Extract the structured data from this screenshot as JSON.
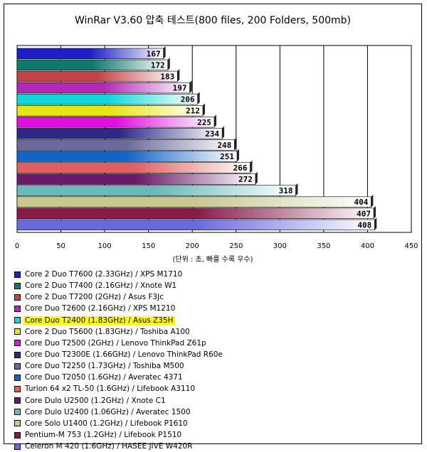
{
  "chart_data": {
    "type": "bar",
    "orientation": "horizontal",
    "title": "WinRar V3.60 압축 테스트(800 files, 200 Folders, 500mb)",
    "unit_note": "(단위 : 초, 빠를 수록 우수)",
    "xlim": [
      0,
      450
    ],
    "xticks": [
      "0",
      "50",
      "100",
      "150",
      "200",
      "250",
      "300",
      "350",
      "400",
      "450"
    ],
    "grid": true,
    "legend_position": "bottom",
    "highlighted_series": 4,
    "series": [
      {
        "name": "Core 2 Duo T7600 (2.33GHz) / XPS M1710",
        "value": 167,
        "color": "#1e1ec8"
      },
      {
        "name": "Core 2 Duo T7400 (2.16GHz) / Xnote W1",
        "value": 172,
        "color": "#0e7a6e"
      },
      {
        "name": "Core 2 Duo T7200 (2GHz) / Asus F3Jc",
        "value": 183,
        "color": "#c24444"
      },
      {
        "name": "Core Duo T2600 (2.16GHz) / XPS M1210",
        "value": 197,
        "color": "#b428b4"
      },
      {
        "name": "Core Duo T2400 (1.83GHz) / Asus Z35H",
        "value": 206,
        "color": "#10d8d8"
      },
      {
        "name": "Core 2 Duo T5600 (1.83GHz) / Toshiba A100",
        "value": 212,
        "color": "#e6e610"
      },
      {
        "name": "Core Duo T2500 (2GHz) / Lenovo ThinkPad Z61p",
        "value": 225,
        "color": "#e010e0"
      },
      {
        "name": "Core Duo T2300E (1.66GHz) / Lenovo ThinkPad R60e",
        "value": 234,
        "color": "#2a2a8a"
      },
      {
        "name": "Core Duo T2250 (1.73GHz) / Toshiba M500",
        "value": 248,
        "color": "#6a6a9a"
      },
      {
        "name": "Core Duo T2050 (1.6GHz) / Averatec 4371",
        "value": 251,
        "color": "#1464c8"
      },
      {
        "name": "Turion 64 x2 TL-50 (1.6GHz) / Lifebook A3110",
        "value": 266,
        "color": "#e06060"
      },
      {
        "name": "Core Dulo U2500 (1.2GHz) / Xnote C1",
        "value": 272,
        "color": "#6a1a6a"
      },
      {
        "name": "Core Dulo U2400 (1.06GHz) / Averatec 1500",
        "value": 318,
        "color": "#6ababa"
      },
      {
        "name": "Core Solo U1400 (1.2GHz) / Lifebook P1610",
        "value": 404,
        "color": "#c8c890"
      },
      {
        "name": "Pentium-M 753 (1.2GHz) / Lifebook P1510",
        "value": 407,
        "color": "#8a1a4a"
      },
      {
        "name": "Celeron M 420 (1.6GHz) / HASEE JIVE W420R",
        "value": 408,
        "color": "#6a6ae0"
      }
    ]
  }
}
